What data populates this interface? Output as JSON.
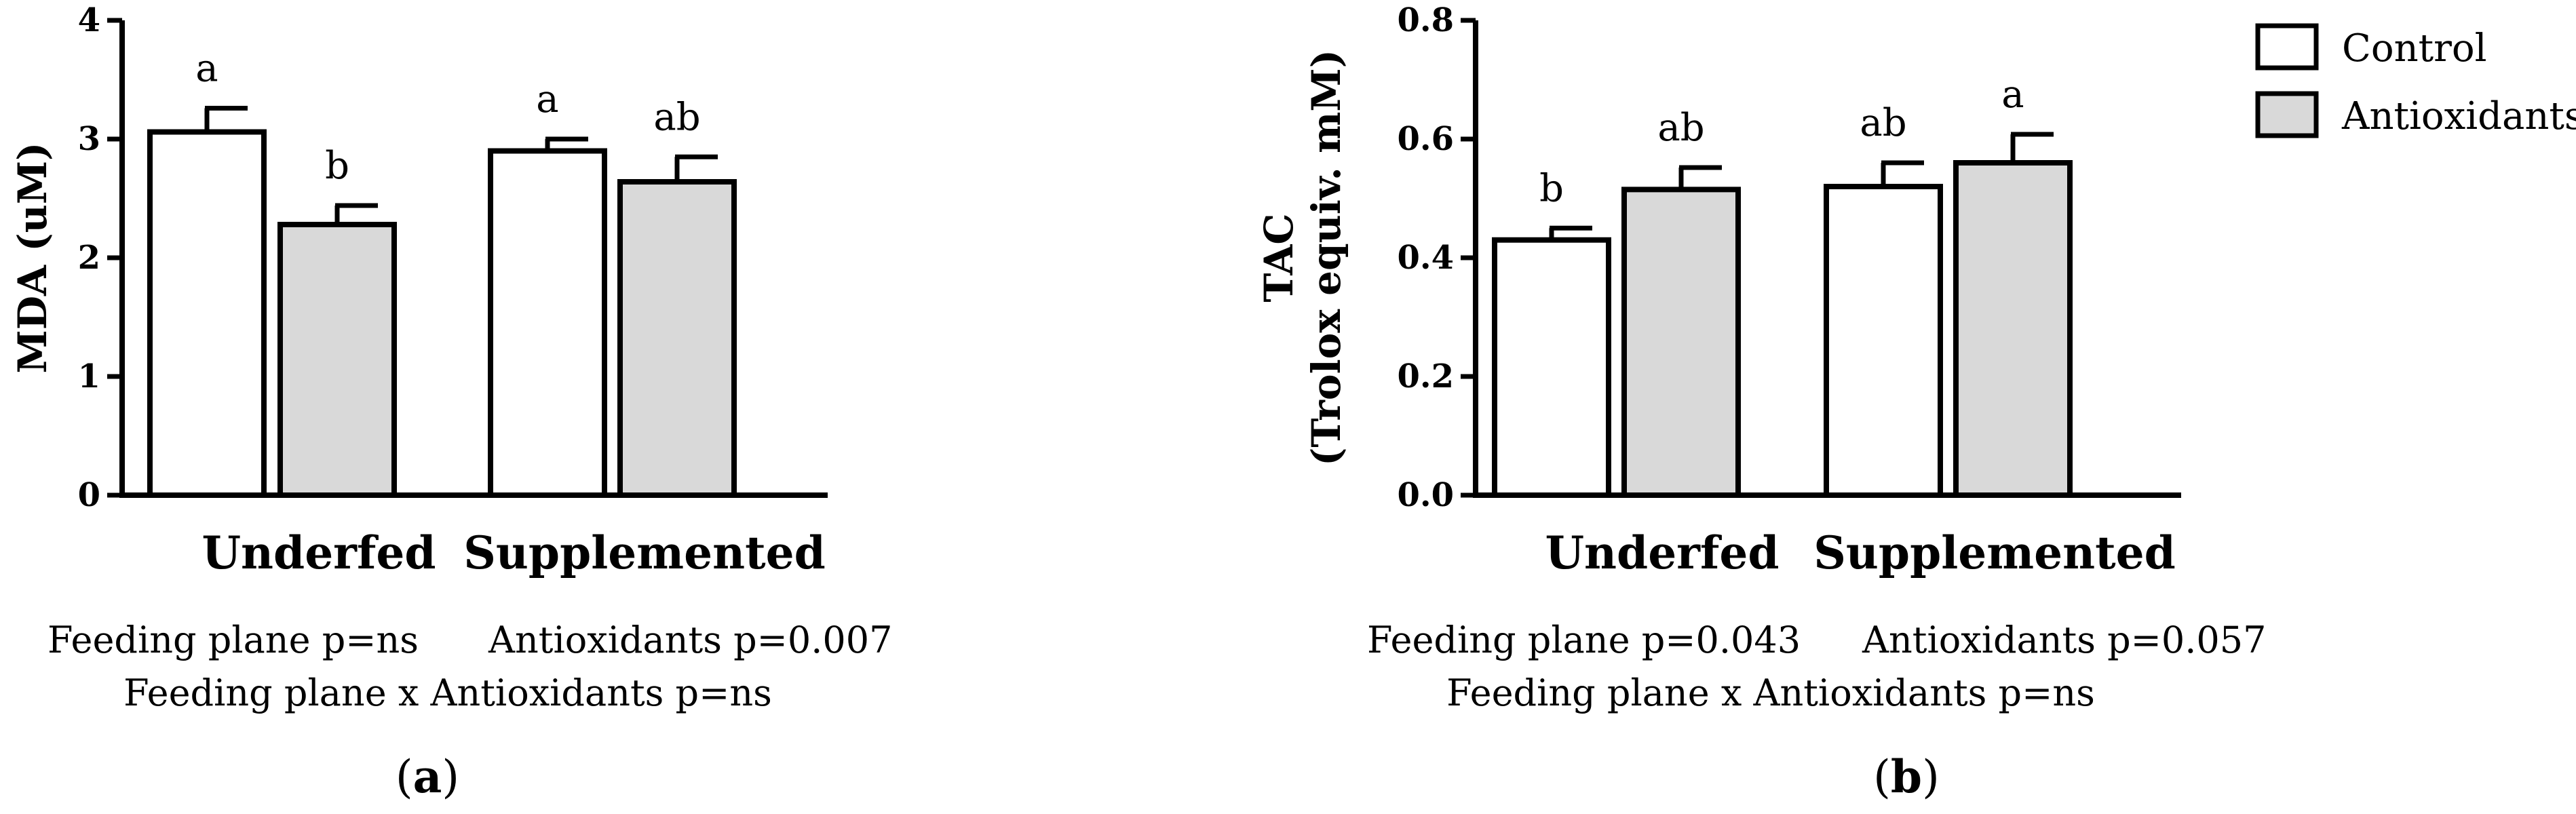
{
  "chart_data": [
    {
      "type": "bar",
      "panel_label": "a",
      "ylabel": "MDA (uM)",
      "ylim": [
        0,
        4
      ],
      "yticks": [
        "0",
        "1",
        "2",
        "3",
        "4"
      ],
      "ytick_values": [
        0,
        1,
        2,
        3,
        4
      ],
      "categories": [
        "Underfed",
        "Supplemented"
      ],
      "series": [
        {
          "name": "Control",
          "values": [
            3.06,
            2.9
          ],
          "errors": [
            0.2,
            0.1
          ],
          "letters": [
            "a",
            "a"
          ]
        },
        {
          "name": "Antioxidants",
          "values": [
            2.28,
            2.64
          ],
          "errors": [
            0.16,
            0.21
          ],
          "letters": [
            "b",
            "ab"
          ]
        }
      ],
      "stats": {
        "feeding": "Feeding plane p=ns",
        "antiox": "Antioxidants p=0.007",
        "interaction": "Feeding plane x Antioxidants p=ns"
      }
    },
    {
      "type": "bar",
      "panel_label": "b",
      "ylabel_line1": "TAC",
      "ylabel_line2": "(Trolox equiv. mM)",
      "ylim": [
        0,
        0.8
      ],
      "yticks": [
        "0.0",
        "0.2",
        "0.4",
        "0.6",
        "0.8"
      ],
      "ytick_values": [
        0,
        0.2,
        0.4,
        0.6,
        0.8
      ],
      "categories": [
        "Underfed",
        "Supplemented"
      ],
      "series": [
        {
          "name": "Control",
          "values": [
            0.43,
            0.52
          ],
          "errors": [
            0.02,
            0.04
          ],
          "letters": [
            "b",
            "ab"
          ]
        },
        {
          "name": "Antioxidants",
          "values": [
            0.515,
            0.56
          ],
          "errors": [
            0.037,
            0.048
          ],
          "letters": [
            "ab",
            "a"
          ]
        }
      ],
      "stats": {
        "feeding": "Feeding plane p=0.043",
        "antiox": "Antioxidants p=0.057",
        "interaction": "Feeding plane x Antioxidants p=ns"
      }
    }
  ],
  "legend": [
    {
      "label": "Control",
      "color": "#ffffff"
    },
    {
      "label": "Antioxidants",
      "color": "#d9d9d9"
    }
  ],
  "colors": {
    "control": "#ffffff",
    "antioxidants": "#d9d9d9",
    "stroke": "#000000"
  }
}
